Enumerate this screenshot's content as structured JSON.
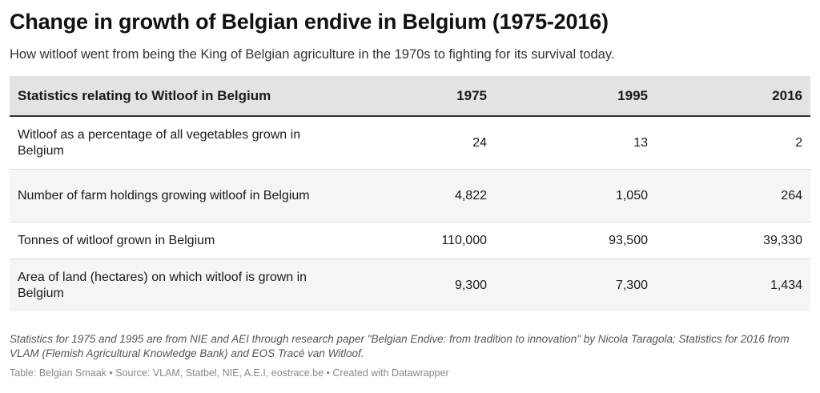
{
  "title": "Change in growth of Belgian endive in Belgium (1975-2016)",
  "subtitle": "How witloof went from being the King of Belgian agriculture in the 1970s to fighting for its survival today.",
  "chart_data": {
    "type": "table",
    "columns": [
      "Statistics relating to Witloof in Belgium",
      "1975",
      "1995",
      "2016"
    ],
    "rows": [
      [
        "Witloof as a percentage of all vegetables grown in Belgium",
        "24",
        "13",
        "2"
      ],
      [
        "Number of farm holdings growing witloof in Belgium",
        "4,822",
        "1,050",
        "264"
      ],
      [
        "Tonnes of witloof grown in Belgium",
        "110,000",
        "93,500",
        "39,330"
      ],
      [
        "Area of land (hectares) on which witloof is grown in Belgium",
        "9,300",
        "7,300",
        "1,434"
      ]
    ]
  },
  "notes": "Statistics for 1975 and 1995 are from NIE and AEI through research paper \"Belgian Endive: from tradition to innovation\" by Nicola Taragola; Statistics for 2016 from VLAM (Flemish Agricultural Knowledge Bank) and EOS Tracé van Witloof.",
  "footer": "Table: Belgian Smaak • Source: VLAM, Statbel, NIE, A.E.I, eostrace.be • Created with Datawrapper",
  "colors": {
    "header_background": "#e3e3e3",
    "shaded_row": "#f5f5f5",
    "header_rule": "#333333"
  }
}
